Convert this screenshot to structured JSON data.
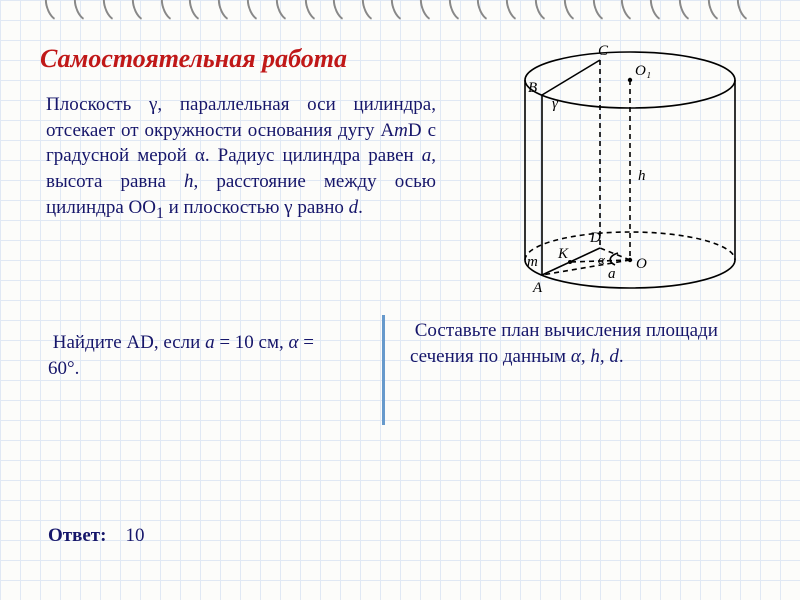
{
  "title": {
    "text": "Самостоятельная работа",
    "color": "#c01818",
    "fontsize": 26,
    "fontstyle": "italic",
    "fontweight": "bold"
  },
  "body": {
    "text_color": "#16166a",
    "fontsize": 19,
    "main_paragraph_html": "Плоскость γ, параллельная оси цилиндра, отсекает от окружности основания дугу A<i>m</i>D с градусной мерой α. Радиус цилиндра равен <i>a</i>, высота равна <i>h</i>, расстояние между осью цилиндра OO<sub>1</sub> и плоскостью γ равно <i>d</i>.",
    "task_left_html": " Найдите AD, если <i>a</i> = 10 см, <i>α</i> = 60°.",
    "task_right_html": " Составьте план вычисления площади сечения по данным <i>α</i>, <i>h</i>, <i>d</i>.",
    "answer_label": "Ответ:",
    "answer_value": "10"
  },
  "diagram": {
    "labels": {
      "A": "A",
      "B": "B",
      "C": "C",
      "D": "D",
      "O": "O",
      "O1": "O₁",
      "K": "K",
      "gamma": "γ",
      "h": "h",
      "a": "a",
      "m": "m",
      "alpha": "α"
    },
    "stroke": "#000000",
    "stroke_width": 1.6,
    "dash": "5,4",
    "label_fontsize": 15,
    "label_fontstyle_main": "italic",
    "label_fontstyle_points": "normal"
  },
  "layout": {
    "grid_color": "#e0e8f4",
    "grid_size": 20,
    "background": "#fcfcfa",
    "divider_color": "#6699cc"
  }
}
